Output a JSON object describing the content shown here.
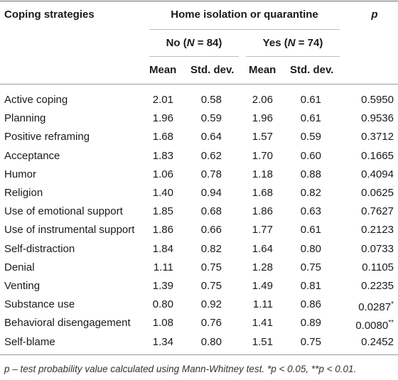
{
  "header": {
    "col_strategy": "Coping strategies",
    "group": "Home isolation or quarantine",
    "col_p": "p",
    "no_group_prefix": "No (",
    "no_group_n": "N",
    "no_group_suffix": " = 84)",
    "yes_group_prefix": "Yes (",
    "yes_group_n": "N",
    "yes_group_suffix": " = 74)",
    "mean": "Mean",
    "sd": "Std. dev."
  },
  "rows": [
    {
      "strategy": "Active coping",
      "no_mean": "2.01",
      "no_sd": "0.58",
      "yes_mean": "2.06",
      "yes_sd": "0.61",
      "p": "0.5950"
    },
    {
      "strategy": "Planning",
      "no_mean": "1.96",
      "no_sd": "0.59",
      "yes_mean": "1.96",
      "yes_sd": "0.61",
      "p": "0.9536"
    },
    {
      "strategy": "Positive reframing",
      "no_mean": "1.68",
      "no_sd": "0.64",
      "yes_mean": "1.57",
      "yes_sd": "0.59",
      "p": "0.3712"
    },
    {
      "strategy": "Acceptance",
      "no_mean": "1.83",
      "no_sd": "0.62",
      "yes_mean": "1.70",
      "yes_sd": "0.60",
      "p": "0.1665"
    },
    {
      "strategy": "Humor",
      "no_mean": "1.06",
      "no_sd": "0.78",
      "yes_mean": "1.18",
      "yes_sd": "0.88",
      "p": "0.4094"
    },
    {
      "strategy": "Religion",
      "no_mean": "1.40",
      "no_sd": "0.94",
      "yes_mean": "1.68",
      "yes_sd": "0.82",
      "p": "0.0625"
    },
    {
      "strategy": "Use of emotional support",
      "no_mean": "1.85",
      "no_sd": "0.68",
      "yes_mean": "1.86",
      "yes_sd": "0.63",
      "p": "0.7627"
    },
    {
      "strategy": "Use of instrumental support",
      "no_mean": "1.86",
      "no_sd": "0.66",
      "yes_mean": "1.77",
      "yes_sd": "0.61",
      "p": "0.2123"
    },
    {
      "strategy": "Self-distraction",
      "no_mean": "1.84",
      "no_sd": "0.82",
      "yes_mean": "1.64",
      "yes_sd": "0.80",
      "p": "0.0733"
    },
    {
      "strategy": "Denial",
      "no_mean": "1.11",
      "no_sd": "0.75",
      "yes_mean": "1.28",
      "yes_sd": "0.75",
      "p": "0.1105"
    },
    {
      "strategy": "Venting",
      "no_mean": "1.39",
      "no_sd": "0.75",
      "yes_mean": "1.49",
      "yes_sd": "0.81",
      "p": "0.2235"
    },
    {
      "strategy": "Substance use",
      "no_mean": "0.80",
      "no_sd": "0.92",
      "yes_mean": "1.11",
      "yes_sd": "0.86",
      "p": "0.0287*"
    },
    {
      "strategy": "Behavioral disengagement",
      "no_mean": "1.08",
      "no_sd": "0.76",
      "yes_mean": "1.41",
      "yes_sd": "0.89",
      "p": "0.0080**"
    },
    {
      "strategy": "Self-blame",
      "no_mean": "1.34",
      "no_sd": "0.80",
      "yes_mean": "1.51",
      "yes_sd": "0.75",
      "p": "0.2452"
    }
  ],
  "footnote": "p – test probability value calculated using Mann-Whitney test. *p < 0.05, **p < 0.01."
}
